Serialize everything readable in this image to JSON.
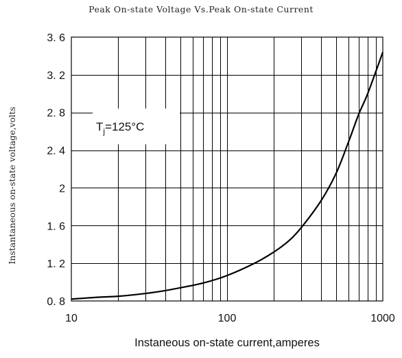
{
  "chart_data": {
    "type": "line",
    "title": "Peak On-state Voltage Vs.Peak On-state Current",
    "xlabel": "Instaneous on-state current,amperes",
    "ylabel": "Instantaneous on-state voltage,volts",
    "x_scale": "log",
    "xlim": [
      10,
      1000
    ],
    "ylim": [
      0.8,
      3.6
    ],
    "x_ticks": [
      "10",
      "100",
      "1000"
    ],
    "y_ticks": [
      "3. 6",
      "3. 2",
      "2. 8",
      "2. 4",
      "2",
      "1. 6",
      "1. 2",
      "0. 8"
    ],
    "y_tick_values": [
      3.6,
      3.2,
      2.8,
      2.4,
      2.0,
      1.6,
      1.2,
      0.8
    ],
    "grid": true,
    "annotation": {
      "main": "T",
      "sub": "j",
      "rest": "=125°C"
    },
    "series": [
      {
        "x": [
          10,
          15,
          20,
          30,
          40,
          50,
          70,
          100,
          150,
          200,
          250,
          300,
          400,
          500,
          600,
          700,
          800,
          1000
        ],
        "y": [
          0.82,
          0.84,
          0.85,
          0.88,
          0.91,
          0.94,
          0.99,
          1.07,
          1.2,
          1.32,
          1.44,
          1.58,
          1.86,
          2.15,
          2.48,
          2.78,
          3.0,
          3.44
        ]
      }
    ]
  }
}
